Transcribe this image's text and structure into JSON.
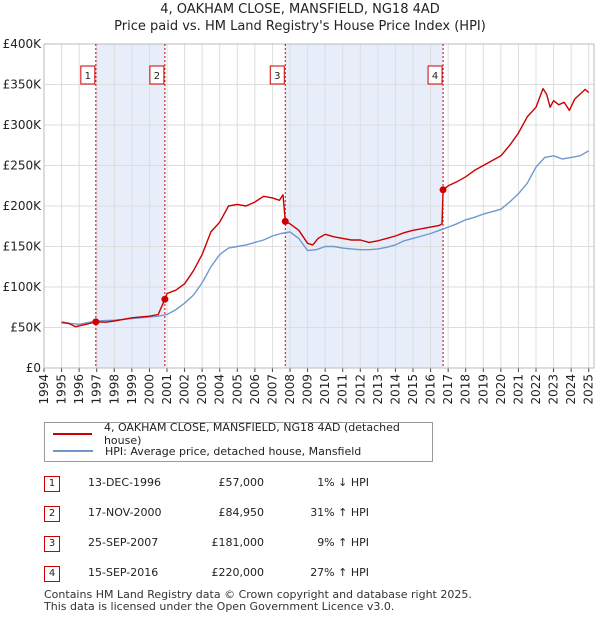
{
  "title_line1": "4, OAKHAM CLOSE, MANSFIELD, NG18 4AD",
  "title_line2": "Price paid vs. HM Land Registry's House Price Index (HPI)",
  "colors": {
    "property": "#cc0000",
    "hpi": "#6f98cf",
    "shade": "#e7eefa",
    "grid": "#dddddd",
    "sale_line": "#cc0000"
  },
  "legend": {
    "items": [
      {
        "label": "4, OAKHAM CLOSE, MANSFIELD, NG18 4AD (detached house)",
        "color": "#cc0000"
      },
      {
        "label": "HPI: Average price, detached house, Mansfield",
        "color": "#6f98cf"
      }
    ]
  },
  "transactions": [
    {
      "num": "1",
      "date": "13-DEC-1996",
      "price": "£57,000",
      "hpi": "1% ↓ HPI"
    },
    {
      "num": "2",
      "date": "17-NOV-2000",
      "price": "£84,950",
      "hpi": "31% ↑ HPI"
    },
    {
      "num": "3",
      "date": "25-SEP-2007",
      "price": "£181,000",
      "hpi": "9% ↑ HPI"
    },
    {
      "num": "4",
      "date": "15-SEP-2016",
      "price": "£220,000",
      "hpi": "27% ↑ HPI"
    }
  ],
  "footer": {
    "line1": "Contains HM Land Registry data © Crown copyright and database right 2025.",
    "line2": "This data is licensed under the Open Government Licence v3.0."
  },
  "chart_data": {
    "type": "line",
    "title": "4, OAKHAM CLOSE, MANSFIELD, NG18 4AD — Price paid vs. HM Land Registry's House Price Index (HPI)",
    "xlabel": "",
    "ylabel": "",
    "xlim": [
      1994.0,
      2025.3
    ],
    "ylim": [
      0,
      400000
    ],
    "x_ticks": [
      "1994",
      "1995",
      "1996",
      "1997",
      "1998",
      "1999",
      "2000",
      "2001",
      "2002",
      "2003",
      "2004",
      "2005",
      "2006",
      "2007",
      "2008",
      "2009",
      "2010",
      "2011",
      "2012",
      "2013",
      "2014",
      "2015",
      "2016",
      "2017",
      "2018",
      "2019",
      "2020",
      "2021",
      "2022",
      "2023",
      "2024",
      "2025"
    ],
    "y_ticks": [
      {
        "value": 0,
        "label": "£0"
      },
      {
        "value": 50000,
        "label": "£50K"
      },
      {
        "value": 100000,
        "label": "£100K"
      },
      {
        "value": 150000,
        "label": "£150K"
      },
      {
        "value": 200000,
        "label": "£200K"
      },
      {
        "value": 250000,
        "label": "£250K"
      },
      {
        "value": 300000,
        "label": "£300K"
      },
      {
        "value": 350000,
        "label": "£350K"
      },
      {
        "value": 400000,
        "label": "£400K"
      }
    ],
    "shaded_periods": [
      [
        1996.95,
        2000.88
      ],
      [
        2007.73,
        2016.71
      ]
    ],
    "sales": [
      {
        "num": "1",
        "x": 1996.95,
        "y": 57000
      },
      {
        "num": "2",
        "x": 2000.88,
        "y": 84950
      },
      {
        "num": "3",
        "x": 2007.73,
        "y": 181000
      },
      {
        "num": "4",
        "x": 2016.71,
        "y": 220000
      }
    ],
    "series": [
      {
        "name": "4, OAKHAM CLOSE, MANSFIELD, NG18 4AD (detached house)",
        "x": [
          1995.0,
          1995.4,
          1995.8,
          1996.2,
          1996.6,
          1996.95,
          1997.5,
          1998.0,
          1998.5,
          1999.0,
          1999.5,
          2000.0,
          2000.5,
          2000.88,
          2001.0,
          2001.5,
          2002.0,
          2002.5,
          2003.0,
          2003.5,
          2004.0,
          2004.5,
          2005.0,
          2005.5,
          2006.0,
          2006.5,
          2007.0,
          2007.4,
          2007.6,
          2007.73,
          2008.0,
          2008.5,
          2009.0,
          2009.3,
          2009.6,
          2010.0,
          2010.5,
          2011.0,
          2011.5,
          2012.0,
          2012.5,
          2013.0,
          2013.5,
          2014.0,
          2014.5,
          2015.0,
          2015.5,
          2016.0,
          2016.5,
          2016.65,
          2016.71,
          2017.0,
          2017.5,
          2018.0,
          2018.5,
          2019.0,
          2019.5,
          2020.0,
          2020.5,
          2021.0,
          2021.5,
          2022.0,
          2022.4,
          2022.6,
          2022.8,
          2023.0,
          2023.3,
          2023.6,
          2023.9,
          2024.2,
          2024.5,
          2024.8,
          2025.0
        ],
        "values": [
          56000,
          55000,
          51000,
          53000,
          55000,
          57000,
          56500,
          58000,
          60000,
          62000,
          63000,
          64000,
          66000,
          84950,
          92000,
          96000,
          104000,
          120000,
          140000,
          168000,
          180000,
          200000,
          202000,
          200000,
          205000,
          212000,
          210000,
          207000,
          214000,
          181000,
          178000,
          170000,
          154000,
          152000,
          160000,
          165000,
          162000,
          160000,
          158000,
          158000,
          155000,
          157000,
          160000,
          163000,
          167000,
          170000,
          172000,
          174000,
          176000,
          178000,
          220000,
          225000,
          230000,
          236000,
          244000,
          250000,
          256000,
          262000,
          275000,
          290000,
          310000,
          322000,
          345000,
          338000,
          322000,
          330000,
          325000,
          328000,
          318000,
          332000,
          338000,
          344000,
          340000
        ]
      },
      {
        "name": "HPI: Average price, detached house, Mansfield",
        "x": [
          1995.0,
          1995.5,
          1996.0,
          1996.5,
          1997.0,
          1997.5,
          1998.0,
          1998.5,
          1999.0,
          1999.5,
          2000.0,
          2000.5,
          2001.0,
          2001.5,
          2002.0,
          2002.5,
          2003.0,
          2003.5,
          2004.0,
          2004.5,
          2005.0,
          2005.5,
          2006.0,
          2006.5,
          2007.0,
          2007.5,
          2008.0,
          2008.5,
          2009.0,
          2009.5,
          2010.0,
          2010.5,
          2011.0,
          2011.5,
          2012.0,
          2012.5,
          2013.0,
          2013.5,
          2014.0,
          2014.5,
          2015.0,
          2015.5,
          2016.0,
          2016.5,
          2017.0,
          2017.5,
          2018.0,
          2018.5,
          2019.0,
          2019.5,
          2020.0,
          2020.5,
          2021.0,
          2021.5,
          2022.0,
          2022.5,
          2023.0,
          2023.5,
          2024.0,
          2024.5,
          2025.0
        ],
        "values": [
          57000,
          55000,
          54000,
          56000,
          58000,
          58500,
          59000,
          60000,
          61000,
          62000,
          63000,
          64000,
          66000,
          72000,
          80000,
          90000,
          105000,
          125000,
          140000,
          148000,
          150000,
          152000,
          155000,
          158000,
          163000,
          166000,
          168000,
          160000,
          145000,
          146000,
          150000,
          150000,
          148000,
          147000,
          146000,
          146000,
          147000,
          149000,
          152000,
          157000,
          160000,
          163000,
          166000,
          170000,
          174000,
          178000,
          183000,
          186000,
          190000,
          193000,
          196000,
          205000,
          215000,
          228000,
          248000,
          260000,
          262000,
          258000,
          260000,
          262000,
          268000
        ]
      }
    ]
  }
}
